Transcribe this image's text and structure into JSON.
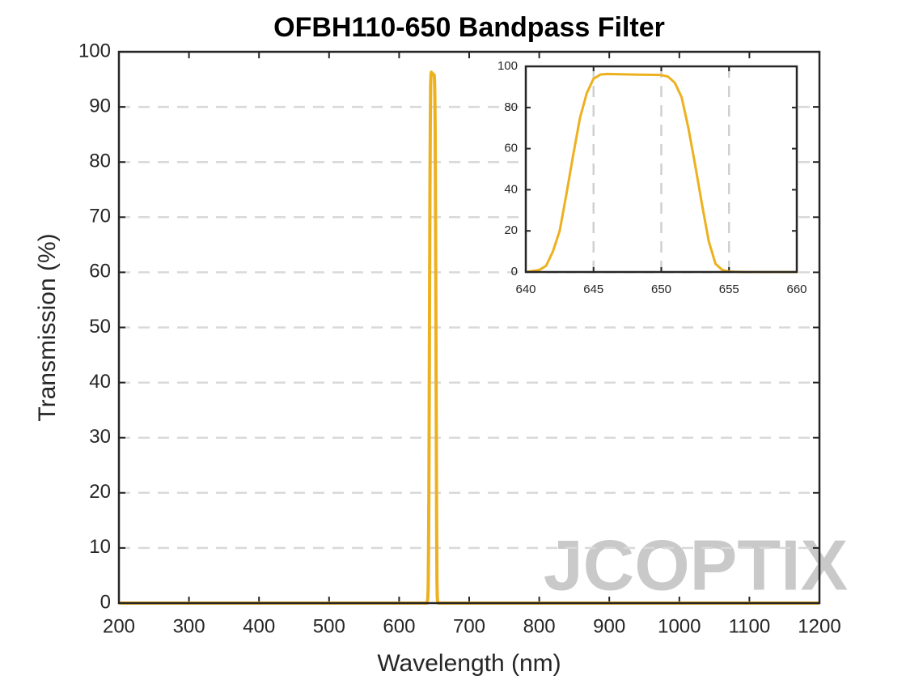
{
  "chart_data": [
    {
      "type": "line",
      "title": "OFBH110-650 Bandpass Filter",
      "x_label": "Wavelength (nm)",
      "y_label": "Transmission (%)",
      "annotation": "JCOPTIX",
      "x": [
        200,
        640,
        641,
        641.5,
        642,
        642.5,
        643,
        643.5,
        644,
        644.5,
        645,
        645.5,
        646,
        648,
        650,
        650.5,
        651,
        651.5,
        652,
        652.5,
        653,
        653.5,
        654,
        654.5,
        655,
        656,
        660,
        1200
      ],
      "values": [
        0,
        0,
        1,
        3,
        10,
        20,
        38,
        57,
        75,
        87,
        94,
        96,
        96.3,
        96,
        95.8,
        95,
        92,
        85,
        70,
        52,
        33,
        15,
        4,
        1,
        0.2,
        0,
        0,
        0
      ],
      "color": "#edb120",
      "xlim": [
        200,
        1200
      ],
      "xticks": [
        200,
        300,
        400,
        500,
        600,
        700,
        800,
        900,
        1000,
        1100,
        1200
      ],
      "ylim": [
        0,
        100
      ],
      "yticks": [
        0,
        10,
        20,
        30,
        40,
        50,
        60,
        70,
        80,
        90,
        100
      ],
      "grid": "y"
    },
    {
      "type": "line",
      "x": [
        640,
        641,
        641.5,
        642,
        642.5,
        643,
        643.5,
        644,
        644.5,
        645,
        645.5,
        646,
        648,
        650,
        650.5,
        651,
        651.5,
        652,
        652.5,
        653,
        653.5,
        654,
        654.5,
        655,
        656,
        660
      ],
      "values": [
        0,
        1,
        3,
        10,
        20,
        38,
        57,
        75,
        87,
        94,
        96,
        96.3,
        96,
        95.8,
        95,
        92,
        85,
        70,
        52,
        33,
        15,
        4,
        1,
        0.2,
        0,
        0
      ],
      "color": "#edb120",
      "xlim": [
        640,
        660
      ],
      "xticks": [
        640,
        645,
        650,
        655,
        660
      ],
      "ylim": [
        0,
        100
      ],
      "yticks": [
        0,
        20,
        40,
        60,
        80,
        100
      ],
      "grid": "x"
    }
  ]
}
